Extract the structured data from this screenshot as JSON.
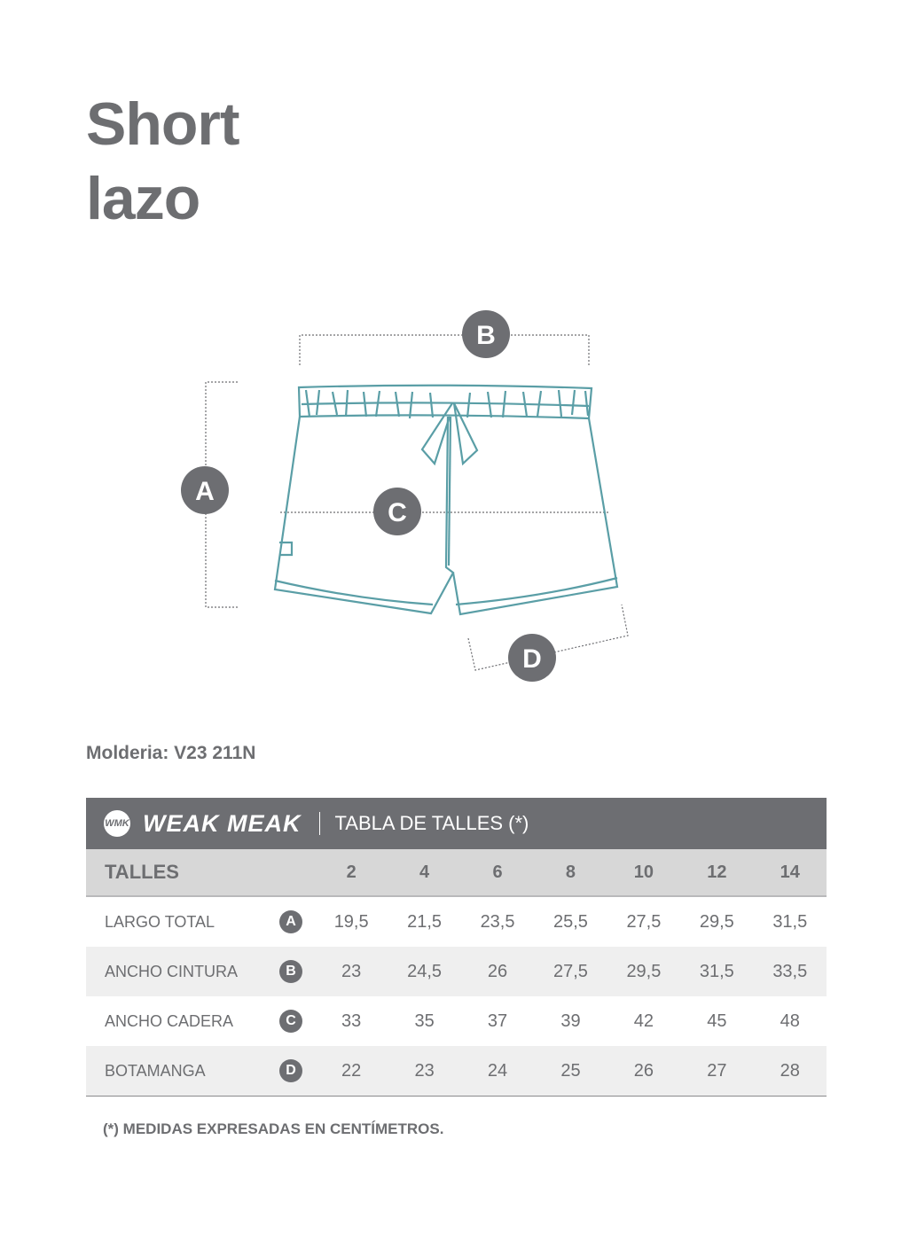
{
  "title": {
    "line1": "Short",
    "line2": "lazo"
  },
  "figure": {
    "garment_color": "#5a9ea6",
    "marker_color": "#6d6e72",
    "markers": {
      "a": "A",
      "b": "B",
      "c": "C",
      "d": "D"
    }
  },
  "molderia": "Molderia: V23 211N",
  "table": {
    "logo_mark": "WMK",
    "brand": "WEAK MEAK",
    "title": "TABLA DE TALLES (*)",
    "header_label": "TALLES",
    "sizes": [
      "2",
      "4",
      "6",
      "8",
      "10",
      "12",
      "14"
    ],
    "rows": [
      {
        "label": "LARGO TOTAL",
        "badge": "A",
        "values": [
          "19,5",
          "21,5",
          "23,5",
          "25,5",
          "27,5",
          "29,5",
          "31,5"
        ]
      },
      {
        "label": "ANCHO CINTURA",
        "badge": "B",
        "values": [
          "23",
          "24,5",
          "26",
          "27,5",
          "29,5",
          "31,5",
          "33,5"
        ]
      },
      {
        "label": "ANCHO CADERA",
        "badge": "C",
        "values": [
          "33",
          "35",
          "37",
          "39",
          "42",
          "45",
          "48"
        ]
      },
      {
        "label": "BOTAMANGA",
        "badge": "D",
        "values": [
          "22",
          "23",
          "24",
          "25",
          "26",
          "27",
          "28"
        ]
      }
    ]
  },
  "footnote": "(*) MEDIDAS EXPRESADAS EN CENTÍMETROS."
}
